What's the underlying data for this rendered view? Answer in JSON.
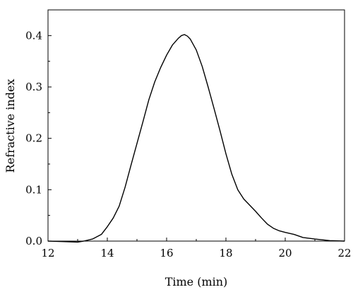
{
  "chart_data": {
    "type": "line",
    "title": "",
    "xlabel": "Time (min)",
    "ylabel": "Refractive index",
    "xlim": [
      12,
      22
    ],
    "ylim": [
      0,
      0.45
    ],
    "xticks": [
      12,
      14,
      16,
      18,
      20,
      22
    ],
    "xtick_labels": [
      "12",
      "14",
      "16",
      "18",
      "20",
      "22"
    ],
    "yticks": [
      0,
      0.1,
      0.2,
      0.3,
      0.4
    ],
    "ytick_labels": [
      "0.0",
      "0.1",
      "0.2",
      "0.3",
      "0.4"
    ],
    "grid": false,
    "series": [
      {
        "color": "#000000",
        "x": [
          12.0,
          12.5,
          13.0,
          13.2,
          13.5,
          13.8,
          14.0,
          14.2,
          14.4,
          14.6,
          14.8,
          15.0,
          15.2,
          15.4,
          15.6,
          15.8,
          16.0,
          16.2,
          16.4,
          16.5,
          16.6,
          16.7,
          16.8,
          17.0,
          17.2,
          17.4,
          17.6,
          17.8,
          18.0,
          18.2,
          18.4,
          18.6,
          18.8,
          19.0,
          19.2,
          19.4,
          19.6,
          19.8,
          20.0,
          20.3,
          20.6,
          21.0,
          21.5,
          22.0
        ],
        "y": [
          0.0,
          -0.001,
          -0.002,
          0.0,
          0.004,
          0.013,
          0.028,
          0.045,
          0.068,
          0.105,
          0.148,
          0.19,
          0.232,
          0.275,
          0.31,
          0.338,
          0.362,
          0.382,
          0.395,
          0.4,
          0.402,
          0.399,
          0.393,
          0.372,
          0.34,
          0.3,
          0.258,
          0.215,
          0.17,
          0.13,
          0.1,
          0.082,
          0.07,
          0.058,
          0.045,
          0.033,
          0.025,
          0.02,
          0.017,
          0.013,
          0.007,
          0.004,
          0.001,
          0.0
        ]
      }
    ]
  }
}
